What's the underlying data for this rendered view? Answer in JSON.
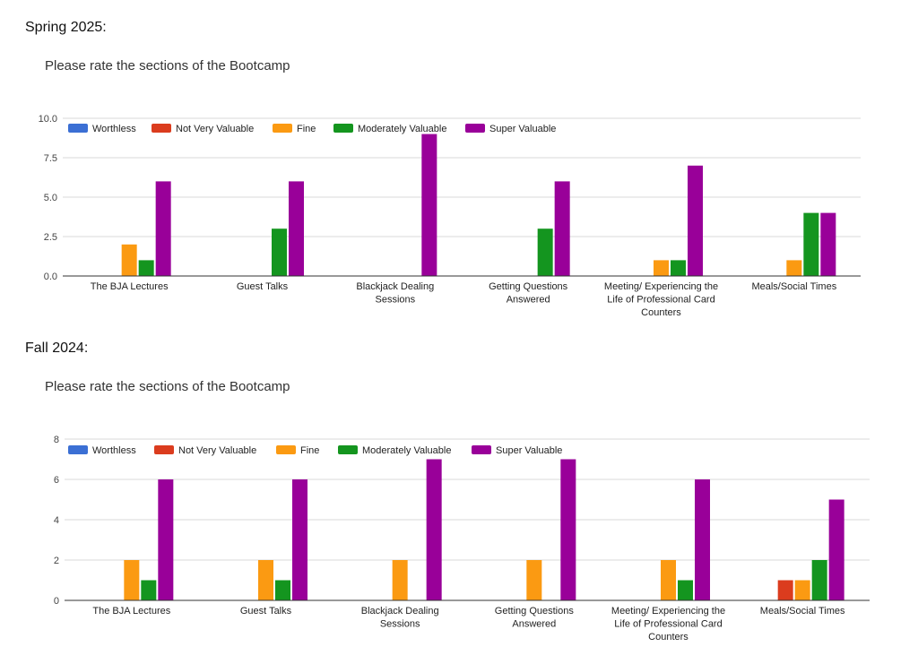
{
  "sections": [
    {
      "heading": "Spring 2025:",
      "chart_title": "Please rate the sections of the Bootcamp"
    },
    {
      "heading": "Fall 2024:",
      "chart_title": "Please rate the sections of the Bootcamp"
    }
  ],
  "colors": {
    "Worthless": "#3b6fd4",
    "Not Very Valuable": "#db3c1e",
    "Fine": "#fb9a12",
    "Moderately Valuable": "#14951f",
    "Super Valuable": "#990099"
  },
  "chart_data": [
    {
      "type": "bar",
      "title": "Please rate the sections of the Bootcamp",
      "categories": [
        "The BJA Lectures",
        "Guest Talks",
        "Blackjack Dealing Sessions",
        "Getting Questions Answered",
        "Meeting/ Experiencing the Life of Professional Card Counters",
        "Meals/Social Times"
      ],
      "category_lines": [
        [
          "The BJA Lectures"
        ],
        [
          "Guest Talks"
        ],
        [
          "Blackjack Dealing",
          "Sessions"
        ],
        [
          "Getting Questions",
          "Answered"
        ],
        [
          "Meeting/ Experiencing the",
          "Life of Professional Card",
          "Counters"
        ],
        [
          "Meals/Social Times"
        ]
      ],
      "series": [
        {
          "name": "Worthless",
          "values": [
            0,
            0,
            0,
            0,
            0,
            0
          ]
        },
        {
          "name": "Not Very Valuable",
          "values": [
            0,
            0,
            0,
            0,
            0,
            0
          ]
        },
        {
          "name": "Fine",
          "values": [
            2,
            0,
            0,
            0,
            1,
            1
          ]
        },
        {
          "name": "Moderately Valuable",
          "values": [
            1,
            3,
            0,
            3,
            1,
            4
          ]
        },
        {
          "name": "Super Valuable",
          "values": [
            6,
            6,
            9,
            6,
            7,
            4
          ]
        }
      ],
      "ylim": [
        0,
        10
      ],
      "yticks": [
        0,
        2.5,
        5,
        7.5,
        10
      ],
      "ytick_labels": [
        "0.0",
        "2.5",
        "5.0",
        "7.5",
        "10.0"
      ],
      "grid": true,
      "legend_position": "top-left"
    },
    {
      "type": "bar",
      "title": "Please rate the sections of the Bootcamp",
      "categories": [
        "The BJA Lectures",
        "Guest Talks",
        "Blackjack Dealing Sessions",
        "Getting Questions Answered",
        "Meeting/ Experiencing the Life of Professional Card Counters",
        "Meals/Social Times"
      ],
      "category_lines": [
        [
          "The BJA Lectures"
        ],
        [
          "Guest Talks"
        ],
        [
          "Blackjack Dealing",
          "Sessions"
        ],
        [
          "Getting Questions",
          "Answered"
        ],
        [
          "Meeting/ Experiencing the",
          "Life of Professional Card",
          "Counters"
        ],
        [
          "Meals/Social Times"
        ]
      ],
      "series": [
        {
          "name": "Worthless",
          "values": [
            0,
            0,
            0,
            0,
            0,
            0
          ]
        },
        {
          "name": "Not Very Valuable",
          "values": [
            0,
            0,
            0,
            0,
            0,
            1
          ]
        },
        {
          "name": "Fine",
          "values": [
            2,
            2,
            2,
            2,
            2,
            1
          ]
        },
        {
          "name": "Moderately Valuable",
          "values": [
            1,
            1,
            0,
            0,
            1,
            2
          ]
        },
        {
          "name": "Super Valuable",
          "values": [
            6,
            6,
            7,
            7,
            6,
            5
          ]
        }
      ],
      "ylim": [
        0,
        8
      ],
      "yticks": [
        0,
        2,
        4,
        6,
        8
      ],
      "ytick_labels": [
        "0",
        "2",
        "4",
        "6",
        "8"
      ],
      "grid": true,
      "legend_position": "top-left"
    }
  ]
}
